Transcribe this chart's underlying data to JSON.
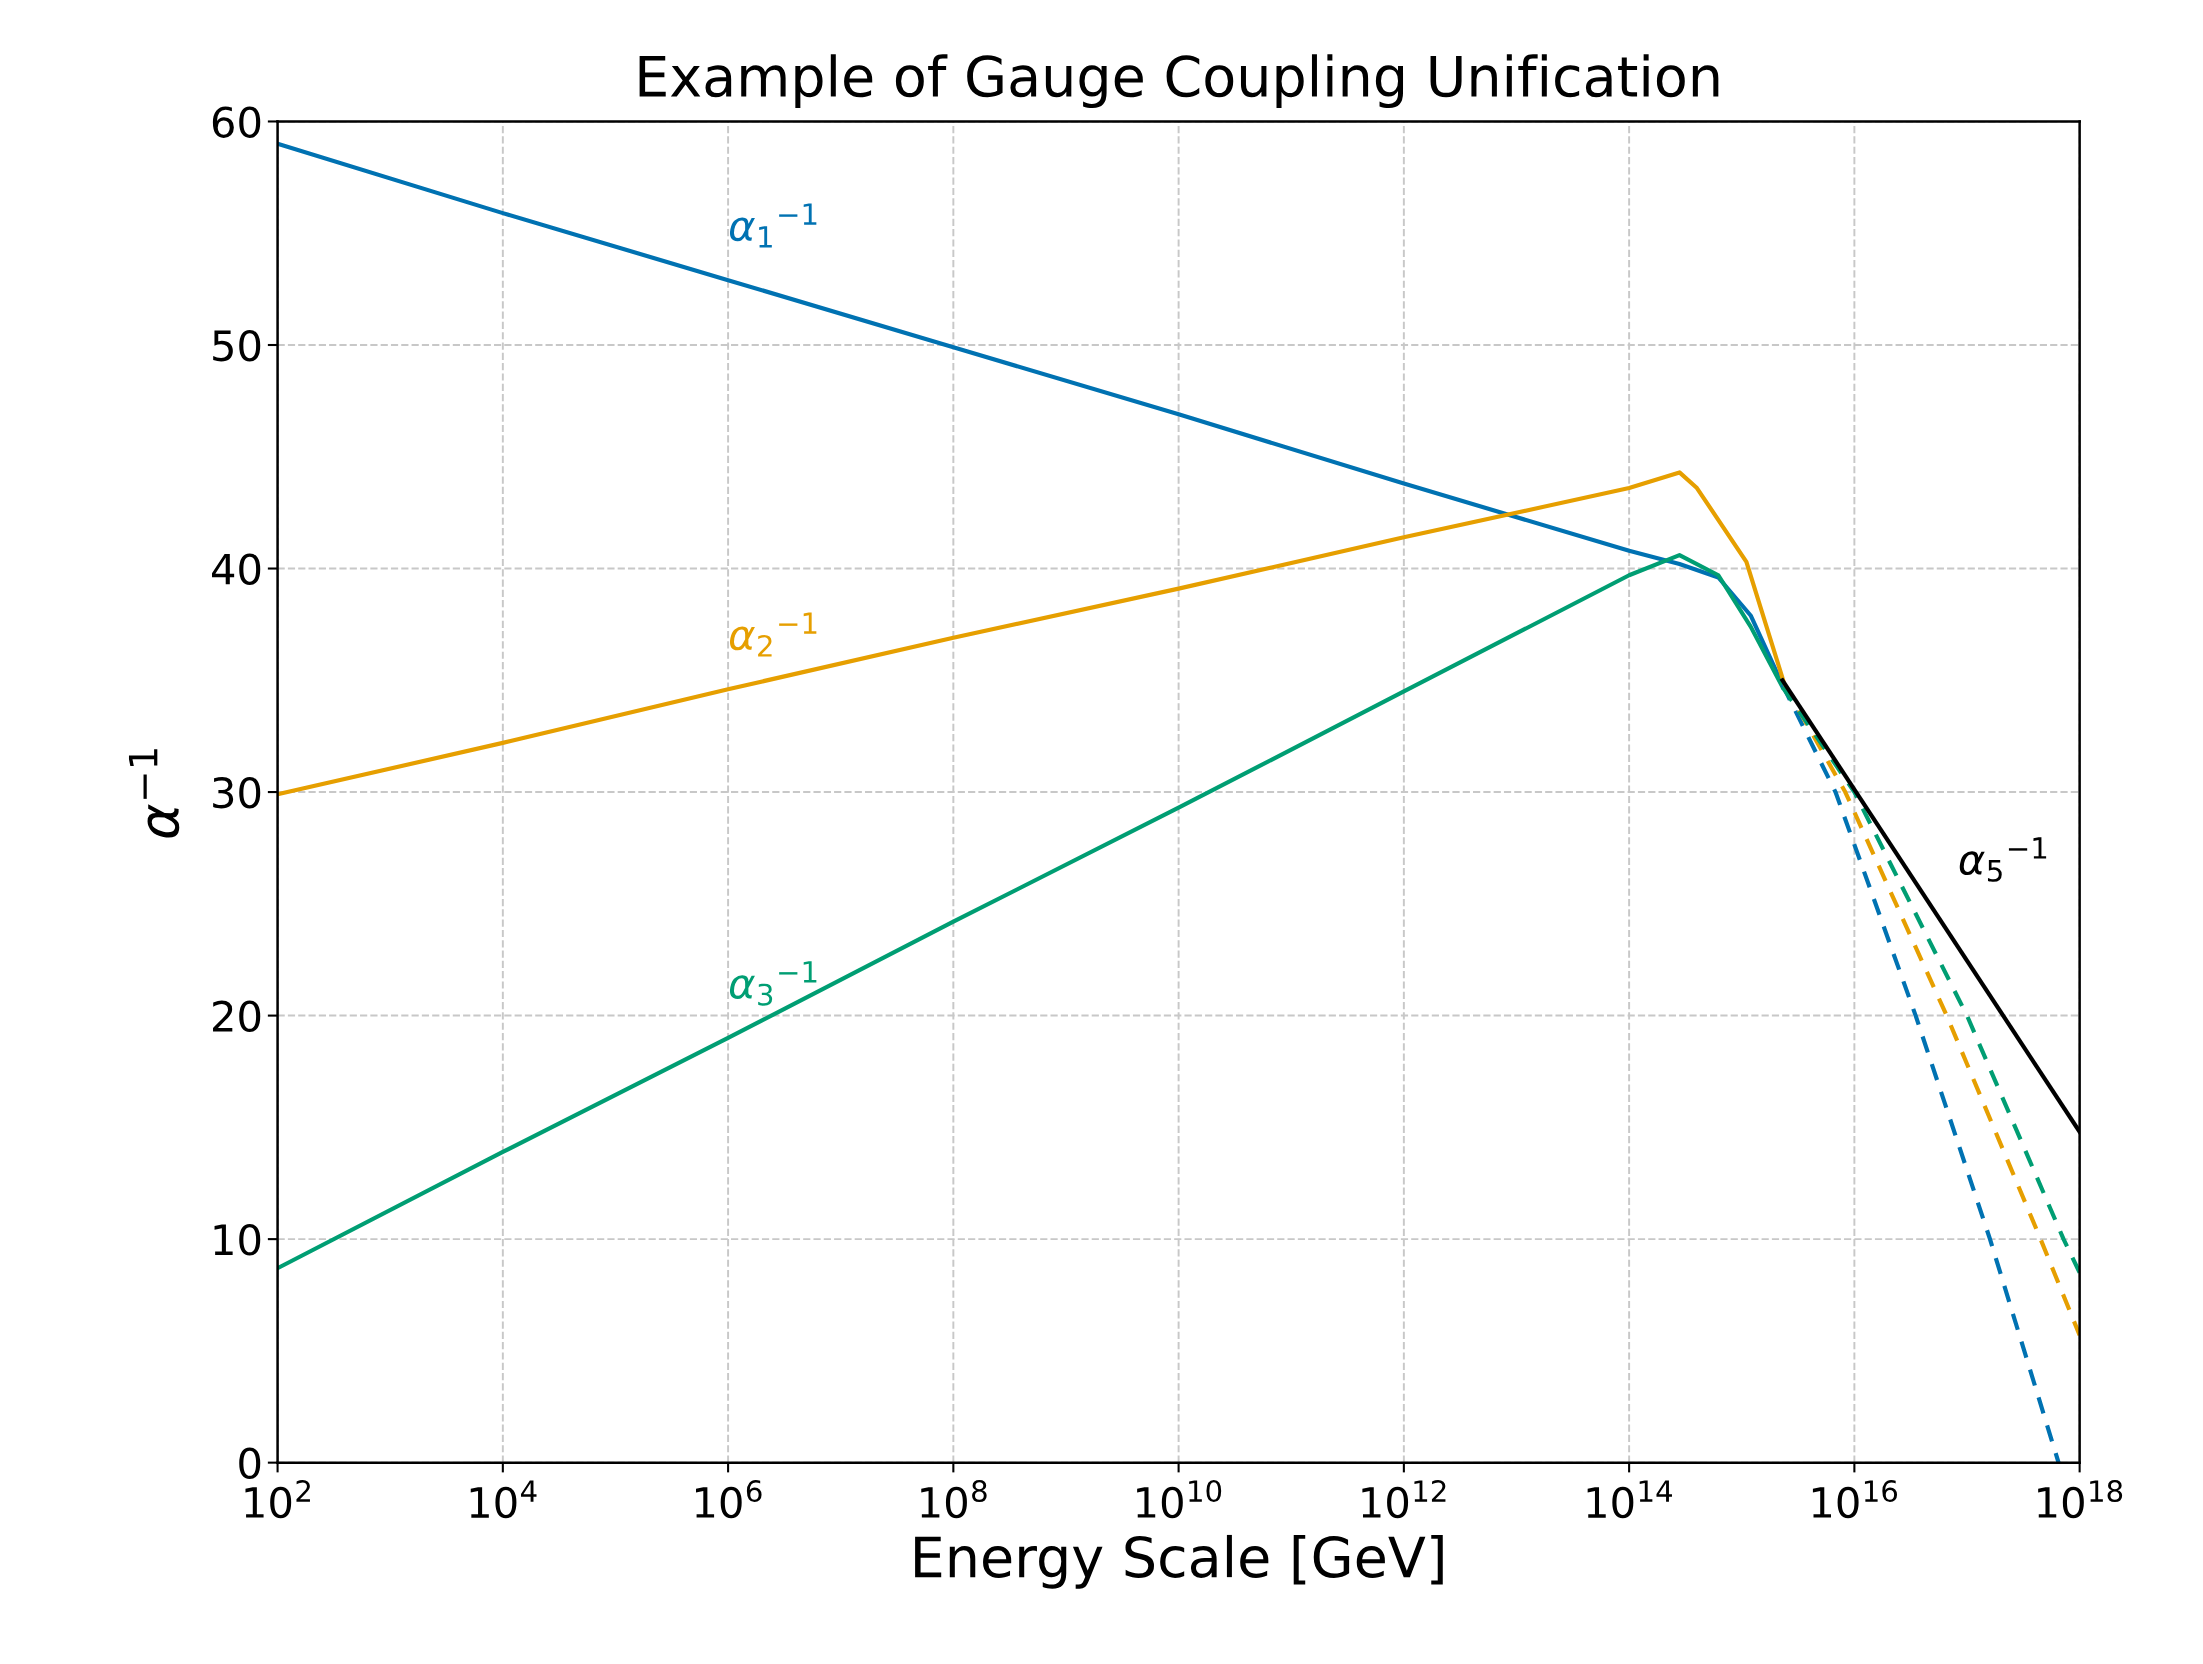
{
  "chart_data": {
    "type": "line",
    "title": "Example of Gauge Coupling Unification",
    "xlabel": "Energy Scale [GeV]",
    "ylabel": "α$^{−1}$",
    "log": "x",
    "grid": true,
    "xlim": [
      100.0,
      1e+18
    ],
    "ylim": [
      0,
      60
    ],
    "xticks": [
      {
        "value": 100.0,
        "label": "10$^{2}$"
      },
      {
        "value": 10000.0,
        "label": "10$^{4}$"
      },
      {
        "value": 1000000.0,
        "label": "10$^{6}$"
      },
      {
        "value": 100000000.0,
        "label": "10$^{8}$"
      },
      {
        "value": 10000000000.0,
        "label": "10$^{10}$"
      },
      {
        "value": 1000000000000.0,
        "label": "10$^{12}$"
      },
      {
        "value": 100000000000000.0,
        "label": "10$^{14}$"
      },
      {
        "value": 1e+16,
        "label": "10$^{16}$"
      },
      {
        "value": 1e+18,
        "label": "10$^{18}$"
      }
    ],
    "yticks": [
      0,
      10,
      20,
      30,
      40,
      50,
      60
    ],
    "series": [
      {
        "name": "α$_{1}$$^{−1}$",
        "color": "#0072b2",
        "line_style": "solid",
        "x": [
          100.0,
          10000.0,
          1000000.0,
          100000000.0,
          10000000000.0,
          1000000000000.0,
          100000000000000.0,
          280000000000000.0,
          620000000000000.0,
          1200000000000000.0,
          2300000000000000.0
        ],
        "values": [
          59,
          55.9,
          52.9,
          49.9,
          46.9,
          43.8,
          40.8,
          40.2,
          39.6,
          37.9,
          34.8
        ]
      },
      {
        "name": "α$_{2}$$^{−1}$",
        "color": "#e69f00",
        "line_style": "solid",
        "x": [
          100.0,
          10000.0,
          1000000.0,
          100000000.0,
          10000000000.0,
          1000000000000.0,
          100000000000000.0,
          280000000000000.0,
          400000000000000.0,
          1100000000000000.0,
          2400000000000000.0
        ],
        "values": [
          29.9,
          32.2,
          34.6,
          36.9,
          39.1,
          41.4,
          43.6,
          44.3,
          43.6,
          40.3,
          34.8
        ]
      },
      {
        "name": "α$_{3}$$^{−1}$",
        "color": "#009e73",
        "line_style": "solid",
        "x": [
          100.0,
          10000.0,
          1000000.0,
          100000000.0,
          10000000000.0,
          1000000000000.0,
          100000000000000.0,
          280000000000000.0,
          620000000000000.0,
          1200000000000000.0,
          2300000000000000.0
        ],
        "values": [
          8.7,
          13.9,
          19.0,
          24.2,
          29.3,
          34.5,
          39.7,
          40.6,
          39.7,
          37.4,
          34.7
        ]
      },
      {
        "color": "#0072b2",
        "line_style": "dashed",
        "x": [
          2300000000000000.0,
          6800000000000000.0,
          3.5e+16,
          1.6e+17,
          6.5e+17
        ],
        "values": [
          34.8,
          30,
          20,
          10,
          0
        ]
      },
      {
        "color": "#e69f00",
        "line_style": "dashed",
        "x": [
          2400000000000000.0,
          8300000000000000.0,
          6.6e+16,
          4.5e+17,
          1e+18
        ],
        "values": [
          34.8,
          30,
          20,
          10,
          5.7
        ]
      },
      {
        "color": "#009e73",
        "line_style": "dashed",
        "x": [
          2300000000000000.0,
          1e+16,
          1e+17,
          7.2e+17,
          1e+18
        ],
        "values": [
          34.7,
          30,
          20,
          10,
          8.5
        ]
      },
      {
        "name": "α$_{5}$$^{−1}$",
        "color": "#000000",
        "line_style": "solid",
        "x": [
          2300000000000000.0,
          1e+18
        ],
        "values": [
          35.0,
          14.8
        ]
      }
    ]
  }
}
